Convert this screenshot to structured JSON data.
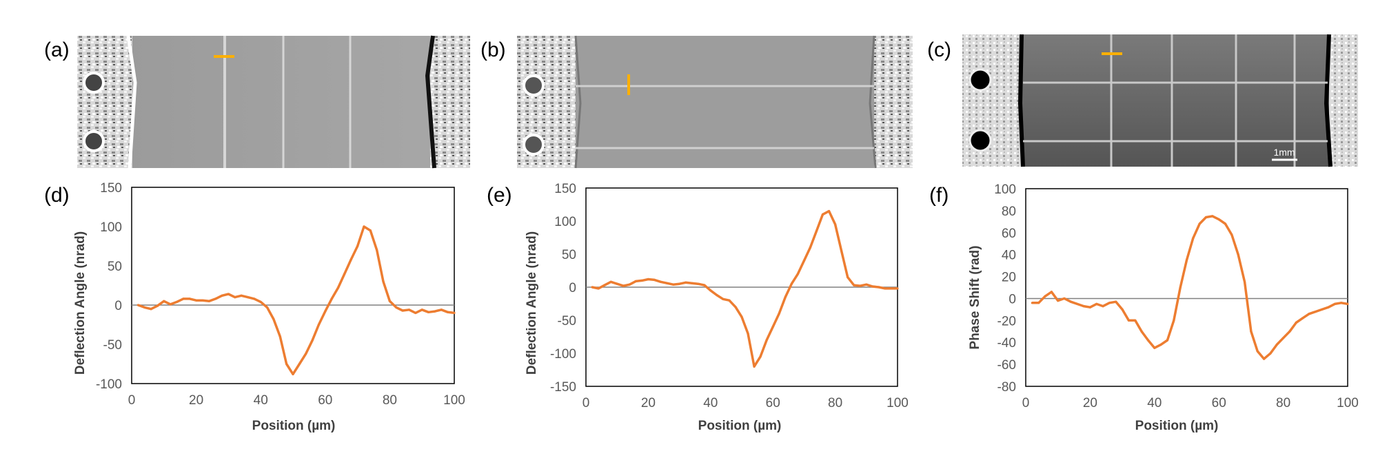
{
  "panels": [
    {
      "label": "(a)",
      "type": "image",
      "description_key": "vertical-grating"
    },
    {
      "label": "(b)",
      "type": "image",
      "description_key": "horizontal-grating"
    },
    {
      "label": "(c)",
      "type": "image",
      "description_key": "grid",
      "scale_bar_text": "1mm"
    }
  ],
  "accent_color": "#ffb000",
  "line_color": "#ed7d31",
  "chart_data": [
    {
      "label": "(d)",
      "type": "line",
      "title": "",
      "xlabel": "Position (µm)",
      "ylabel": "Deflection Angle  (nrad)",
      "xlim": [
        0,
        100
      ],
      "ylim": [
        -100,
        150
      ],
      "xticks": [
        0,
        20,
        40,
        60,
        80,
        100
      ],
      "yticks": [
        -100,
        -50,
        0,
        50,
        100,
        150
      ],
      "x": [
        2,
        4,
        6,
        8,
        10,
        12,
        14,
        16,
        18,
        20,
        22,
        24,
        26,
        28,
        30,
        32,
        34,
        36,
        38,
        40,
        42,
        44,
        46,
        48,
        50,
        52,
        54,
        56,
        58,
        60,
        62,
        64,
        66,
        68,
        70,
        72,
        74,
        76,
        78,
        80,
        82,
        84,
        86,
        88,
        90,
        92,
        94,
        96,
        98,
        100
      ],
      "series": [
        {
          "name": "Deflection Angle",
          "values": [
            0,
            -3,
            -5,
            -1,
            5,
            1,
            4,
            8,
            8,
            6,
            6,
            5,
            8,
            12,
            14,
            10,
            12,
            10,
            8,
            4,
            -3,
            -18,
            -40,
            -75,
            -88,
            -75,
            -62,
            -45,
            -25,
            -8,
            8,
            22,
            40,
            58,
            75,
            100,
            95,
            70,
            30,
            5,
            -3,
            -7,
            -6,
            -10,
            -6,
            -9,
            -8,
            -6,
            -9,
            -10
          ]
        }
      ]
    },
    {
      "label": "(e)",
      "type": "line",
      "title": "",
      "xlabel": "Position (µm)",
      "ylabel": "Deflection Angle  (nrad)",
      "xlim": [
        0,
        100
      ],
      "ylim": [
        -150,
        150
      ],
      "xticks": [
        0,
        20,
        40,
        60,
        80,
        100
      ],
      "yticks": [
        -150,
        -100,
        -50,
        0,
        50,
        100,
        150
      ],
      "x": [
        2,
        4,
        6,
        8,
        10,
        12,
        14,
        16,
        18,
        20,
        22,
        24,
        26,
        28,
        30,
        32,
        34,
        36,
        38,
        40,
        42,
        44,
        46,
        48,
        50,
        52,
        54,
        56,
        58,
        60,
        62,
        64,
        66,
        68,
        70,
        72,
        74,
        76,
        78,
        80,
        82,
        84,
        86,
        88,
        90,
        92,
        94,
        96,
        98,
        100
      ],
      "series": [
        {
          "name": "Deflection Angle",
          "values": [
            0,
            -2,
            3,
            8,
            5,
            2,
            4,
            9,
            10,
            12,
            11,
            8,
            6,
            4,
            5,
            7,
            6,
            5,
            3,
            -5,
            -12,
            -18,
            -20,
            -30,
            -45,
            -70,
            -120,
            -105,
            -80,
            -60,
            -40,
            -15,
            5,
            20,
            40,
            60,
            85,
            110,
            115,
            95,
            55,
            15,
            3,
            2,
            4,
            1,
            0,
            -2,
            -2,
            -2
          ]
        }
      ]
    },
    {
      "label": "(f)",
      "type": "line",
      "title": "",
      "xlabel": "Position (µm)",
      "ylabel": "Phase Shift (rad)",
      "xlim": [
        0,
        100
      ],
      "ylim": [
        -80,
        100
      ],
      "xticks": [
        0,
        20,
        40,
        60,
        80,
        100
      ],
      "yticks": [
        -80,
        -60,
        -40,
        -20,
        0,
        20,
        40,
        60,
        80,
        100
      ],
      "x": [
        2,
        4,
        6,
        8,
        10,
        12,
        14,
        16,
        18,
        20,
        22,
        24,
        26,
        28,
        30,
        32,
        34,
        36,
        38,
        40,
        42,
        44,
        46,
        48,
        50,
        52,
        54,
        56,
        58,
        60,
        62,
        64,
        66,
        68,
        70,
        72,
        74,
        76,
        78,
        80,
        82,
        84,
        86,
        88,
        90,
        92,
        94,
        96,
        98,
        100
      ],
      "series": [
        {
          "name": "Phase Shift",
          "values": [
            -4,
            -4,
            2,
            6,
            -2,
            0,
            -3,
            -5,
            -7,
            -8,
            -5,
            -7,
            -4,
            -3,
            -10,
            -20,
            -20,
            -30,
            -38,
            -45,
            -42,
            -38,
            -20,
            10,
            35,
            55,
            68,
            74,
            75,
            72,
            68,
            58,
            40,
            15,
            -30,
            -48,
            -55,
            -50,
            -42,
            -36,
            -30,
            -22,
            -18,
            -14,
            -12,
            -10,
            -8,
            -5,
            -4,
            -5
          ]
        }
      ]
    }
  ]
}
